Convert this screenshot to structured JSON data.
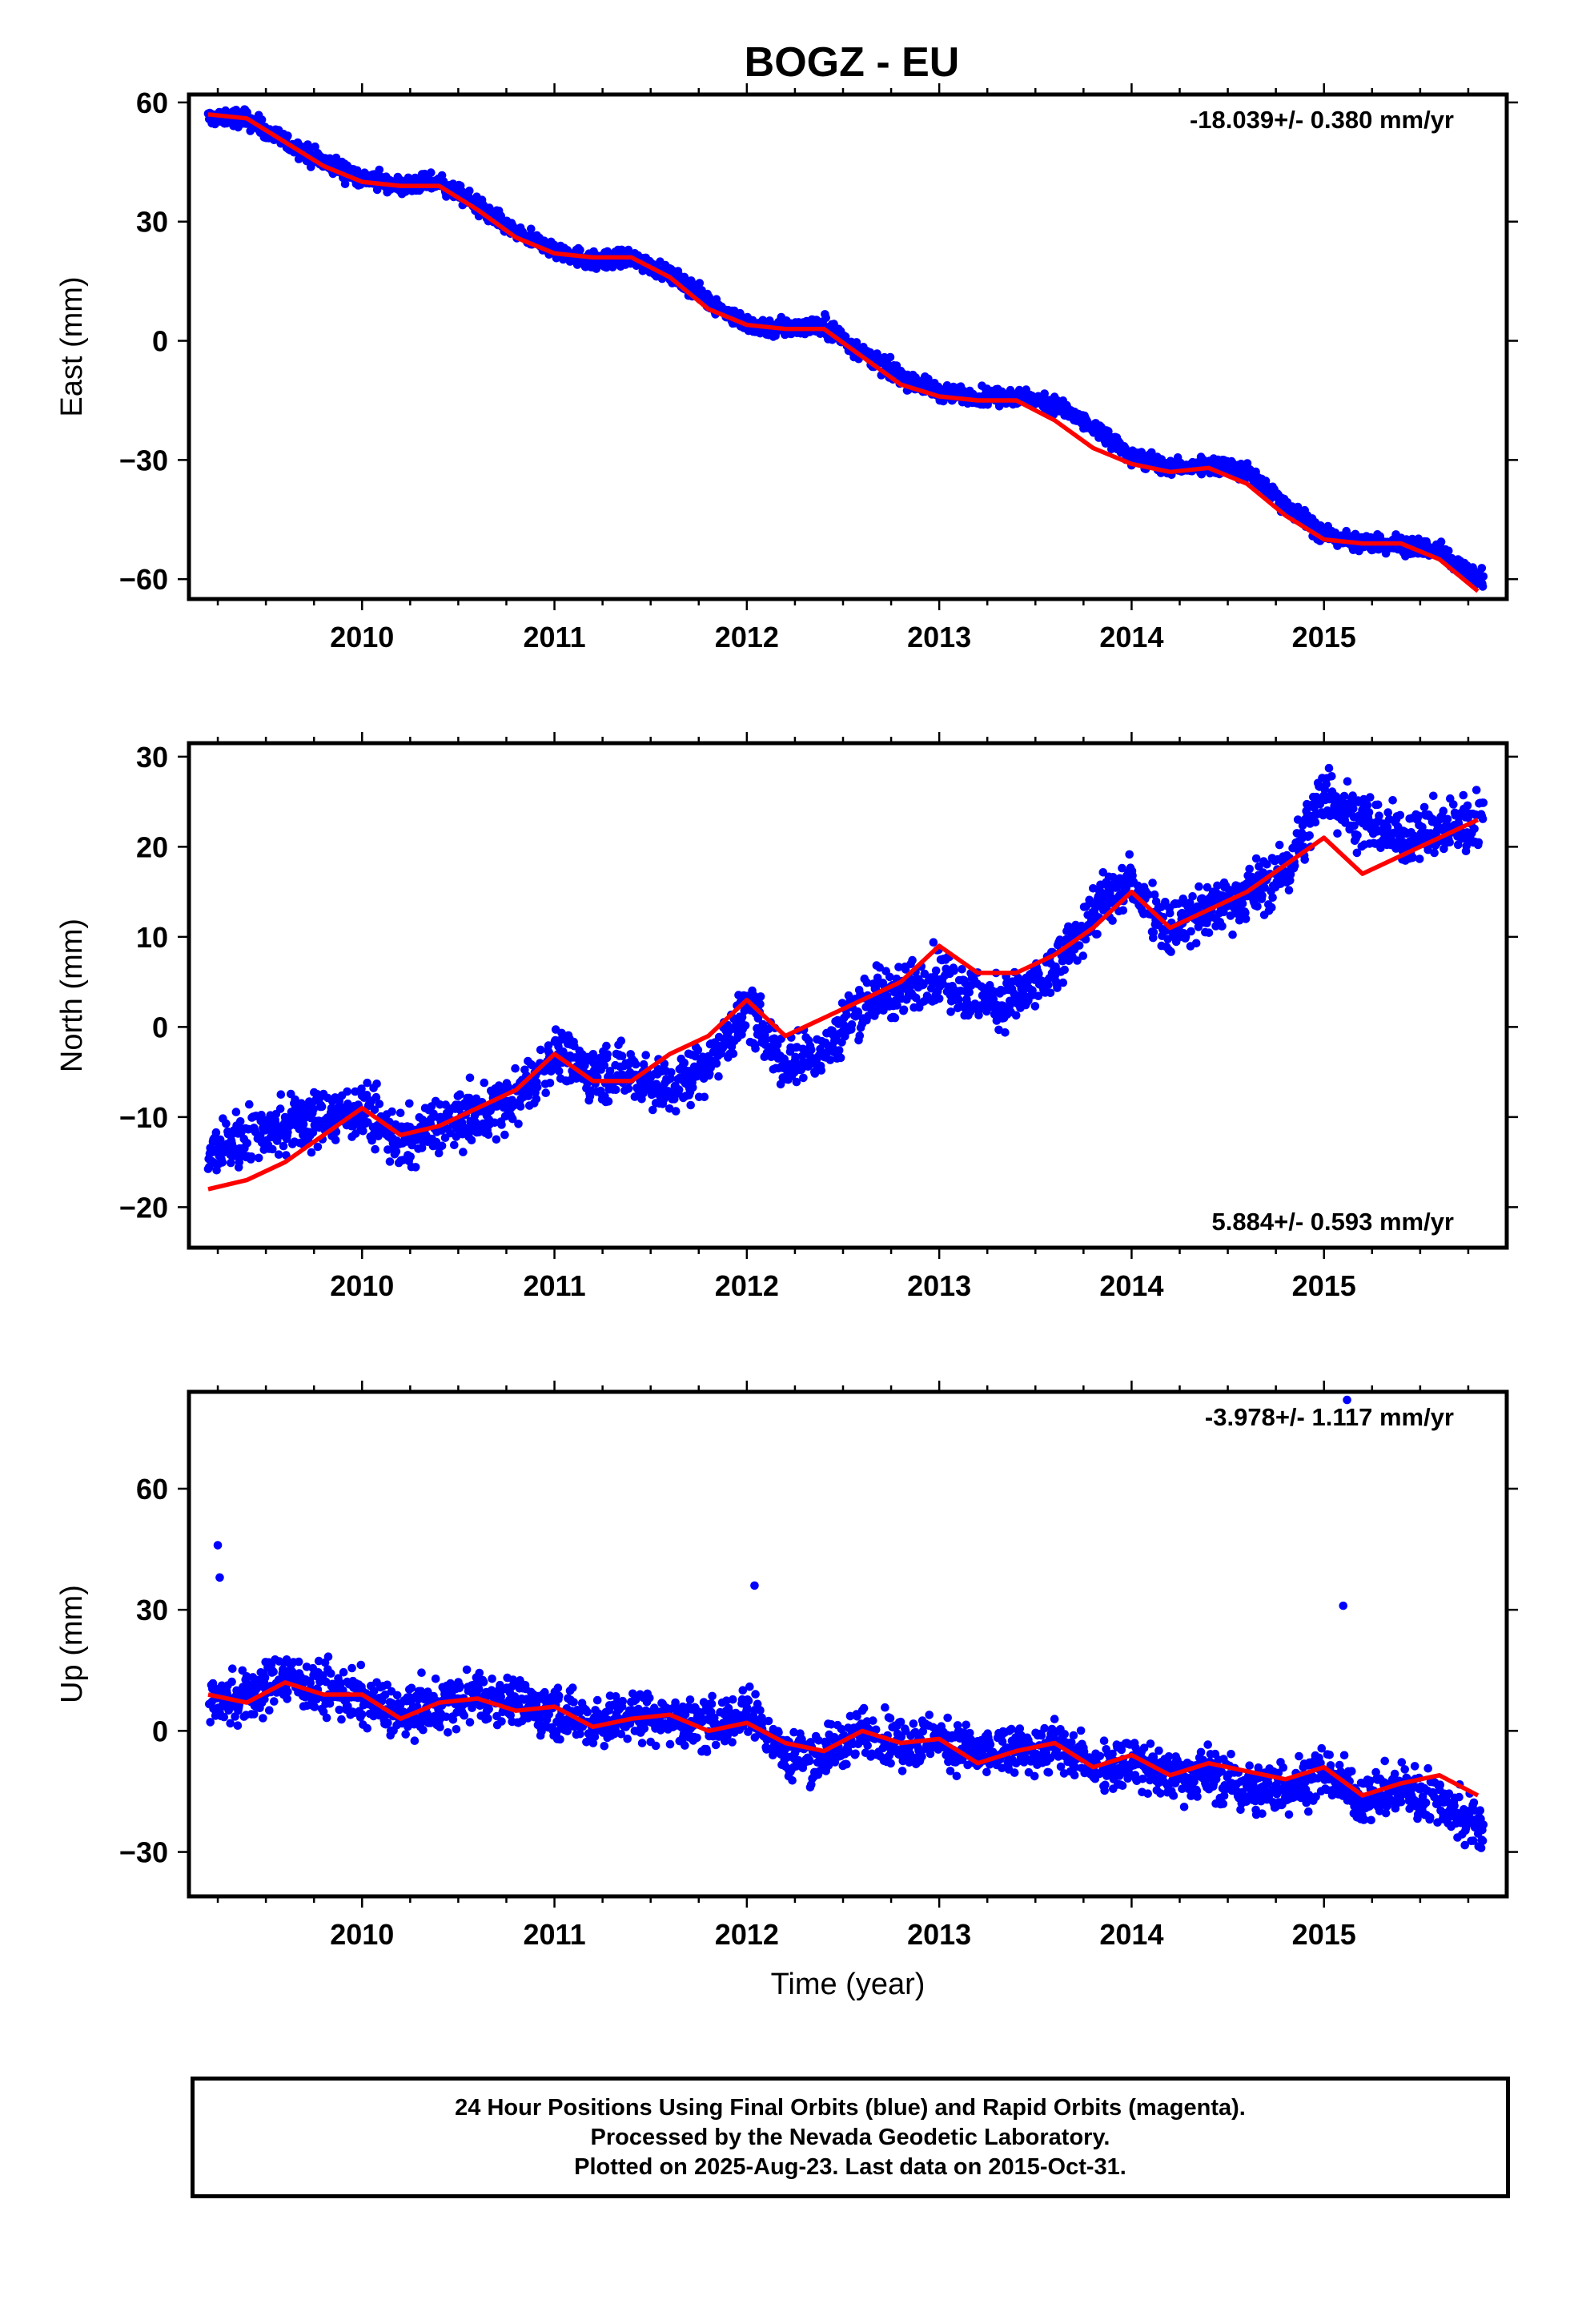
{
  "figure": {
    "title": "BOGZ - EU",
    "colors": {
      "observed": "#0000ff",
      "model": "#ff0000",
      "frame": "#000000"
    },
    "caption": [
      "24 Hour Positions Using Final Orbits (blue) and Rapid Orbits (magenta).",
      "Processed by the Nevada Geodetic Laboratory.",
      "Plotted on 2025-Aug-23. Last data on 2015-Oct-31."
    ]
  },
  "chart_data": [
    {
      "type": "scatter",
      "component": "east",
      "ylabel": "East (mm)",
      "xlabel": "",
      "rate_label": "-18.039+/- 0.380 mm/yr",
      "rate_placement": "top-right",
      "xlim": [
        2009.1,
        2015.95
      ],
      "ylim": [
        -65,
        62
      ],
      "xticks": [
        2010,
        2011,
        2012,
        2013,
        2014,
        2015
      ],
      "xtick_labels": [
        "2010",
        "2011",
        "2012",
        "2013",
        "2014",
        "2015"
      ],
      "yticks": [
        -60,
        -30,
        0,
        30,
        60
      ],
      "ytick_labels": [
        "−60",
        "−30",
        "0",
        "30",
        "60"
      ],
      "data_range": [
        2009.2,
        2015.83
      ],
      "series": [
        {
          "style": "dots",
          "x": [
            2009.2,
            2009.4,
            2009.6,
            2009.8,
            2010.0,
            2010.2,
            2010.4,
            2010.6,
            2010.8,
            2011.0,
            2011.2,
            2011.4,
            2011.6,
            2011.8,
            2012.0,
            2012.2,
            2012.4,
            2012.6,
            2012.8,
            2013.0,
            2013.2,
            2013.4,
            2013.6,
            2013.8,
            2014.0,
            2014.2,
            2014.4,
            2014.6,
            2014.8,
            2015.0,
            2015.2,
            2015.4,
            2015.6,
            2015.8
          ],
          "y": [
            56,
            56,
            50,
            45,
            41,
            39,
            40,
            34,
            27,
            23,
            20,
            21,
            17,
            10,
            4,
            3,
            4,
            -3,
            -9,
            -13,
            -14,
            -14,
            -16,
            -22,
            -29,
            -32,
            -31,
            -33,
            -41,
            -49,
            -51,
            -51,
            -53,
            -60
          ],
          "noise_mm": 1.6
        },
        {
          "style": "line",
          "x": [
            2009.2,
            2009.4,
            2009.6,
            2009.8,
            2010.0,
            2010.2,
            2010.4,
            2010.6,
            2010.8,
            2011.0,
            2011.2,
            2011.4,
            2011.6,
            2011.8,
            2012.0,
            2012.2,
            2012.4,
            2012.6,
            2012.8,
            2013.0,
            2013.2,
            2013.4,
            2013.6,
            2013.8,
            2014.0,
            2014.2,
            2014.4,
            2014.6,
            2014.8,
            2015.0,
            2015.2,
            2015.4,
            2015.6,
            2015.8
          ],
          "y": [
            57,
            56,
            50,
            44,
            40,
            39,
            39,
            33,
            26,
            22,
            21,
            21,
            16,
            8,
            4,
            3,
            3,
            -4,
            -11,
            -14,
            -15,
            -15,
            -20,
            -27,
            -31,
            -33,
            -32,
            -36,
            -44,
            -50,
            -51,
            -51,
            -55,
            -63
          ]
        }
      ]
    },
    {
      "type": "scatter",
      "component": "north",
      "ylabel": "North (mm)",
      "xlabel": "",
      "rate_label": "5.884+/- 0.593 mm/yr",
      "rate_placement": "bottom-right",
      "xlim": [
        2009.1,
        2015.95
      ],
      "ylim": [
        -24.5,
        31.5
      ],
      "xticks": [
        2010,
        2011,
        2012,
        2013,
        2014,
        2015
      ],
      "xtick_labels": [
        "2010",
        "2011",
        "2012",
        "2013",
        "2014",
        "2015"
      ],
      "yticks": [
        -20,
        -10,
        0,
        10,
        20,
        30
      ],
      "ytick_labels": [
        "−20",
        "−10",
        "0",
        "10",
        "20",
        "30"
      ],
      "data_range": [
        2009.2,
        2015.83
      ],
      "series": [
        {
          "style": "dots",
          "x": [
            2009.2,
            2009.4,
            2009.6,
            2009.8,
            2010.0,
            2010.2,
            2010.4,
            2010.6,
            2010.8,
            2011.0,
            2011.2,
            2011.4,
            2011.6,
            2011.8,
            2012.0,
            2012.2,
            2012.4,
            2012.6,
            2012.8,
            2013.0,
            2013.2,
            2013.4,
            2013.6,
            2013.8,
            2014.0,
            2014.2,
            2014.4,
            2014.6,
            2014.8,
            2015.0,
            2015.2,
            2015.4,
            2015.6,
            2015.8
          ],
          "y": [
            -14,
            -12,
            -11,
            -10,
            -9,
            -13,
            -11,
            -10,
            -8,
            -3,
            -5,
            -5,
            -7,
            -4,
            2,
            -4,
            -3,
            3,
            4,
            6,
            3,
            3,
            6,
            13,
            16,
            11,
            13,
            15,
            17,
            26,
            23,
            21,
            22,
            23
          ],
          "noise_mm": 2.2
        },
        {
          "style": "line",
          "x": [
            2009.2,
            2009.4,
            2009.6,
            2009.8,
            2010.0,
            2010.2,
            2010.4,
            2010.6,
            2010.8,
            2011.0,
            2011.2,
            2011.4,
            2011.6,
            2011.8,
            2012.0,
            2012.2,
            2012.4,
            2012.6,
            2012.8,
            2013.0,
            2013.2,
            2013.4,
            2013.6,
            2013.8,
            2014.0,
            2014.2,
            2014.4,
            2014.6,
            2014.8,
            2015.0,
            2015.2,
            2015.4,
            2015.6,
            2015.8
          ],
          "y": [
            -18,
            -17,
            -15,
            -12,
            -9,
            -12,
            -11,
            -9,
            -7,
            -3,
            -6,
            -6,
            -3,
            -1,
            3,
            -1,
            1,
            3,
            5,
            9,
            6,
            6,
            8,
            11,
            15,
            11,
            13,
            15,
            18,
            21,
            17,
            19,
            21,
            23
          ]
        }
      ]
    },
    {
      "type": "scatter",
      "component": "up",
      "ylabel": "Up (mm)",
      "xlabel": "Time (year)",
      "rate_label": "-3.978+/- 1.117 mm/yr",
      "rate_placement": "top-right",
      "xlim": [
        2009.1,
        2015.95
      ],
      "ylim": [
        -41,
        84
      ],
      "xticks": [
        2010,
        2011,
        2012,
        2013,
        2014,
        2015
      ],
      "xtick_labels": [
        "2010",
        "2011",
        "2012",
        "2013",
        "2014",
        "2015"
      ],
      "yticks": [
        -30,
        0,
        30,
        60
      ],
      "ytick_labels": [
        "−30",
        "0",
        "30",
        "60"
      ],
      "data_range": [
        2009.2,
        2015.83
      ],
      "outliers": {
        "x": [
          2009.25,
          2009.26,
          2012.04,
          2015.1,
          2015.12
        ],
        "y": [
          46,
          38,
          36,
          31,
          82
        ]
      },
      "series": [
        {
          "style": "dots",
          "x": [
            2009.2,
            2009.4,
            2009.6,
            2009.8,
            2010.0,
            2010.2,
            2010.4,
            2010.6,
            2010.8,
            2011.0,
            2011.2,
            2011.4,
            2011.6,
            2011.8,
            2012.0,
            2012.2,
            2012.4,
            2012.6,
            2012.8,
            2013.0,
            2013.2,
            2013.4,
            2013.6,
            2013.8,
            2014.0,
            2014.2,
            2014.4,
            2014.6,
            2014.8,
            2015.0,
            2015.2,
            2015.4,
            2015.6,
            2015.8
          ],
          "y": [
            8,
            8,
            14,
            10,
            8,
            4,
            6,
            9,
            7,
            5,
            2,
            4,
            3,
            1,
            5,
            -6,
            -6,
            0,
            -3,
            -2,
            -6,
            -5,
            -4,
            -8,
            -8,
            -11,
            -10,
            -15,
            -14,
            -10,
            -17,
            -14,
            -17,
            -24
          ],
          "noise_mm": 4.5
        },
        {
          "style": "line",
          "x": [
            2009.2,
            2009.4,
            2009.6,
            2009.8,
            2010.0,
            2010.2,
            2010.4,
            2010.6,
            2010.8,
            2011.0,
            2011.2,
            2011.4,
            2011.6,
            2011.8,
            2012.0,
            2012.2,
            2012.4,
            2012.6,
            2012.8,
            2013.0,
            2013.2,
            2013.4,
            2013.6,
            2013.8,
            2014.0,
            2014.2,
            2014.4,
            2014.6,
            2014.8,
            2015.0,
            2015.2,
            2015.4,
            2015.6,
            2015.8
          ],
          "y": [
            9,
            7,
            12,
            9,
            9,
            3,
            7,
            8,
            5,
            6,
            1,
            3,
            4,
            0,
            2,
            -3,
            -5,
            0,
            -3,
            -2,
            -8,
            -5,
            -3,
            -9,
            -6,
            -11,
            -8,
            -10,
            -12,
            -9,
            -16,
            -13,
            -11,
            -16
          ]
        }
      ]
    }
  ]
}
